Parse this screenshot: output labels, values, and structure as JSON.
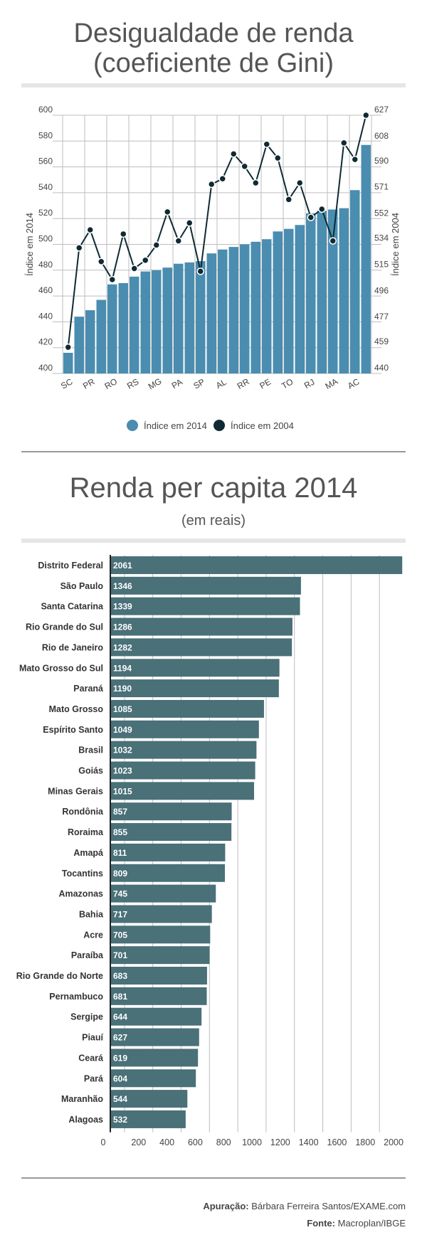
{
  "section1": {
    "title_line1": "Desigualdade de renda",
    "title_line2": "(coeficiente de Gini)"
  },
  "section2": {
    "title": "Renda per capita 2014",
    "subtitle": "(em reais)"
  },
  "colors": {
    "bar1": "#4a8db0",
    "line1": "#0f2a33",
    "bar2": "#4a7078",
    "grid": "#999999"
  },
  "credits": {
    "label1": "Apuração:",
    "value1": "Bárbara Ferreira Santos/EXAME.com",
    "label2": "Fonte:",
    "value2": "Macroplan/IBGE"
  },
  "chart_data": [
    {
      "type": "bar+line",
      "title": "Desigualdade de renda (coeficiente de Gini)",
      "xlabels_shown": [
        "SC",
        "PR",
        "RO",
        "RS",
        "MG",
        "PA",
        "SP",
        "AL",
        "RR",
        "PE",
        "TO",
        "RJ",
        "MA",
        "AC"
      ],
      "ylabel_left": "Índice em 2014",
      "ylabel_right": "Índice em 2004",
      "yticks_left": [
        "400",
        "420",
        "440",
        "460",
        "480",
        "500",
        "520",
        "540",
        "560",
        "580",
        "600"
      ],
      "yticks_right": [
        "440",
        "459",
        "477",
        "496",
        "515",
        "534",
        "552",
        "571",
        "590",
        "608",
        "627"
      ],
      "ylim_left": [
        400,
        600
      ],
      "ylim_right": [
        440,
        627
      ],
      "legend": [
        "Índice em 2014",
        "Índice em 2004"
      ],
      "series": [
        {
          "name": "Índice em 2014",
          "type": "bar",
          "values": [
            416,
            444,
            449,
            457,
            469,
            470,
            475,
            479,
            480,
            482,
            485,
            486,
            487,
            493,
            496,
            498,
            500,
            502,
            504,
            510,
            512,
            515,
            524,
            526,
            527,
            528,
            542,
            577
          ]
        },
        {
          "name": "Índice em 2004",
          "type": "line",
          "values": [
            459,
            531,
            544,
            521,
            508,
            541,
            516,
            522,
            533,
            557,
            536,
            549,
            514,
            577,
            581,
            599,
            590,
            578,
            606,
            596,
            566,
            578,
            553,
            559,
            536,
            607,
            595,
            627
          ]
        }
      ]
    },
    {
      "type": "bar",
      "orientation": "horizontal",
      "title": "Renda per capita 2014",
      "subtitle": "(em reais)",
      "categories": [
        "Distrito Federal",
        "São Paulo",
        "Santa Catarina",
        "Rio Grande do Sul",
        "Rio de Janeiro",
        "Mato Grosso do Sul",
        "Paraná",
        "Mato Grosso",
        "Espírito Santo",
        "Brasil",
        "Goiás",
        "Minas Gerais",
        "Rondônia",
        "Roraima",
        "Amapá",
        "Tocantins",
        "Amazonas",
        "Bahia",
        "Acre",
        "Paraíba",
        "Rio Grande do Norte",
        "Pernambuco",
        "Sergipe",
        "Piauí",
        "Ceará",
        "Pará",
        "Maranhão",
        "Alagoas"
      ],
      "values": [
        2061,
        1346,
        1339,
        1286,
        1282,
        1194,
        1190,
        1085,
        1049,
        1032,
        1023,
        1015,
        857,
        855,
        811,
        809,
        745,
        717,
        705,
        701,
        683,
        681,
        644,
        627,
        619,
        604,
        544,
        532
      ],
      "xticks": [
        "0",
        "200",
        "400",
        "600",
        "800",
        "1000",
        "1200",
        "1400",
        "1600",
        "1800",
        "2000"
      ],
      "xlim": [
        0,
        2060
      ]
    }
  ]
}
